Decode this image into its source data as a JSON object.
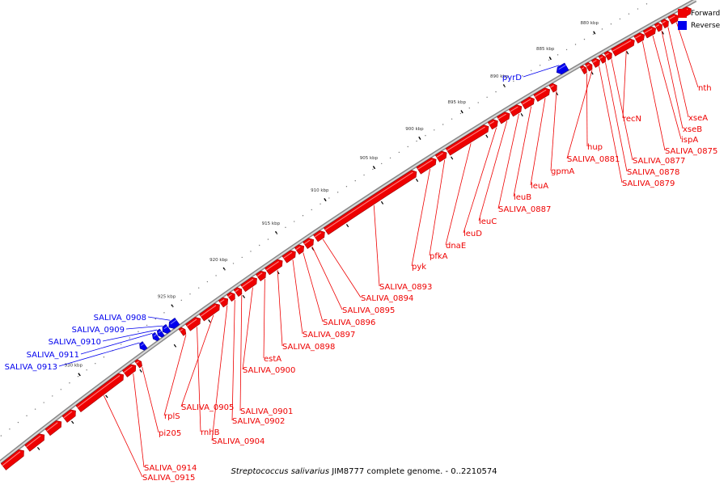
{
  "legend": {
    "forward": {
      "label": "Forward",
      "color": "#ee0000"
    },
    "reverse": {
      "label": "Reverse",
      "color": "#0000ee"
    }
  },
  "caption": {
    "species": "Streptococcus salivarius",
    "rest": " JIM8777 complete genome. - 0..2210574"
  },
  "scale": {
    "unit": "kbp",
    "ticks": [
      "880 kbp",
      "885 kbp",
      "890 kbp",
      "895 kbp",
      "900 kbp",
      "905 kbp",
      "910 kbp",
      "915 kbp",
      "920 kbp",
      "925 kbp",
      "930 kbp"
    ]
  },
  "genes": [
    {
      "name": "nth",
      "strand": "forward"
    },
    {
      "name": "xseA",
      "strand": "forward"
    },
    {
      "name": "xseB",
      "strand": "forward"
    },
    {
      "name": "ispA",
      "strand": "forward"
    },
    {
      "name": "SALIVA_0875",
      "strand": "forward"
    },
    {
      "name": "recN",
      "strand": "forward"
    },
    {
      "name": "SALIVA_0877",
      "strand": "forward"
    },
    {
      "name": "SALIVA_0878",
      "strand": "forward"
    },
    {
      "name": "SALIVA_0879",
      "strand": "forward"
    },
    {
      "name": "SALIVA_0881",
      "strand": "forward"
    },
    {
      "name": "hup",
      "strand": "forward"
    },
    {
      "name": "pyrD",
      "strand": "reverse"
    },
    {
      "name": "gpmA",
      "strand": "forward"
    },
    {
      "name": "leuA",
      "strand": "forward"
    },
    {
      "name": "leuB",
      "strand": "forward"
    },
    {
      "name": "SALIVA_0887",
      "strand": "forward"
    },
    {
      "name": "leuC",
      "strand": "forward"
    },
    {
      "name": "leuD",
      "strand": "forward"
    },
    {
      "name": "dnaE",
      "strand": "forward"
    },
    {
      "name": "pfkA",
      "strand": "forward"
    },
    {
      "name": "pyk",
      "strand": "forward"
    },
    {
      "name": "SALIVA_0893",
      "strand": "forward"
    },
    {
      "name": "SALIVA_0894",
      "strand": "forward"
    },
    {
      "name": "SALIVA_0895",
      "strand": "forward"
    },
    {
      "name": "SALIVA_0896",
      "strand": "forward"
    },
    {
      "name": "SALIVA_0897",
      "strand": "forward"
    },
    {
      "name": "SALIVA_0898",
      "strand": "forward"
    },
    {
      "name": "estA",
      "strand": "forward"
    },
    {
      "name": "SALIVA_0900",
      "strand": "forward"
    },
    {
      "name": "SALIVA_0901",
      "strand": "forward"
    },
    {
      "name": "SALIVA_0902",
      "strand": "forward"
    },
    {
      "name": "SALIVA_0904",
      "strand": "forward"
    },
    {
      "name": "SALIVA_0905",
      "strand": "forward"
    },
    {
      "name": "rnhB",
      "strand": "forward"
    },
    {
      "name": "rplS",
      "strand": "forward"
    },
    {
      "name": "pi205",
      "strand": "forward"
    },
    {
      "name": "SALIVA_0914",
      "strand": "forward"
    },
    {
      "name": "SALIVA_0915",
      "strand": "forward"
    },
    {
      "name": "SALIVA_0908",
      "strand": "reverse"
    },
    {
      "name": "SALIVA_0909",
      "strand": "reverse"
    },
    {
      "name": "SALIVA_0910",
      "strand": "reverse"
    },
    {
      "name": "SALIVA_0911",
      "strand": "reverse"
    },
    {
      "name": "SALIVA_0913",
      "strand": "reverse"
    }
  ]
}
